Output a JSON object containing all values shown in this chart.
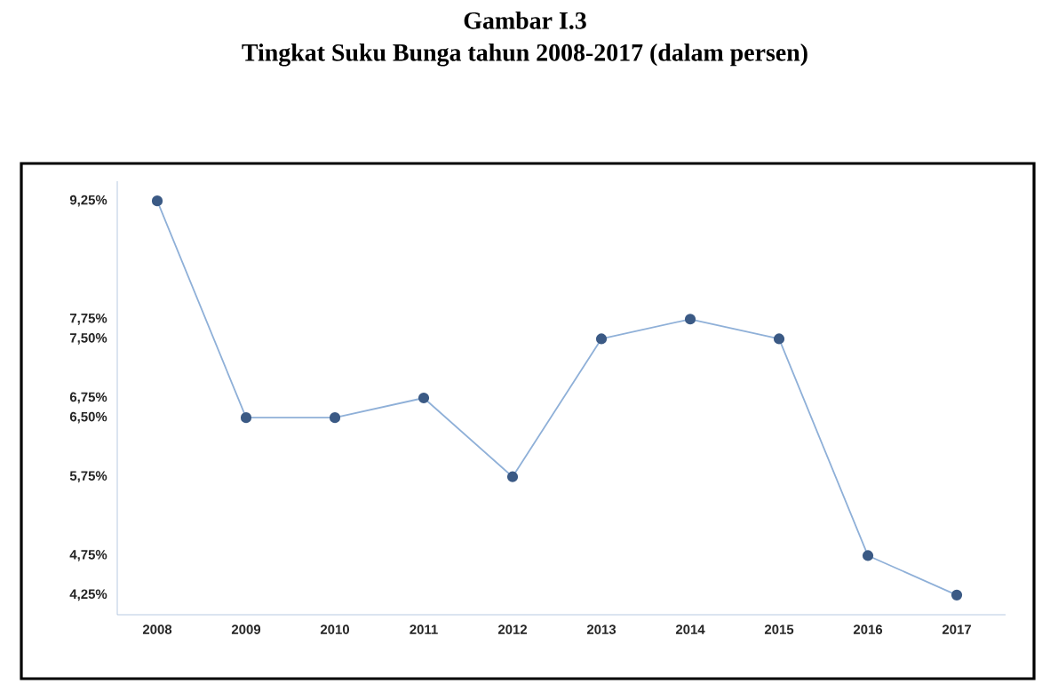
{
  "chart_data": {
    "type": "line",
    "title": "Gambar I.3",
    "subtitle": "Tingkat Suku Bunga tahun 2008-2017 (dalam persen)",
    "categories": [
      "2008",
      "2009",
      "2010",
      "2011",
      "2012",
      "2013",
      "2014",
      "2015",
      "2016",
      "2017"
    ],
    "series": [
      {
        "color": "#8fb0d8",
        "values": [
          9.25,
          6.5,
          6.5,
          6.75,
          5.75,
          7.5,
          7.75,
          7.5,
          4.75,
          4.25
        ]
      }
    ],
    "ylim": [
      4,
      9.5
    ],
    "yticks": [
      {
        "value": 4.25,
        "label": "4,25%"
      },
      {
        "value": 4.75,
        "label": "4,75%"
      },
      {
        "value": 5.75,
        "label": "5,75%"
      },
      {
        "value": 6.5,
        "label": "6,50%"
      },
      {
        "value": 6.75,
        "label": "6,75%"
      },
      {
        "value": 7.5,
        "label": "7,50%"
      },
      {
        "value": 7.75,
        "label": "7,75%"
      },
      {
        "value": 9.25,
        "label": "9,25%"
      }
    ],
    "marker": "circle"
  }
}
